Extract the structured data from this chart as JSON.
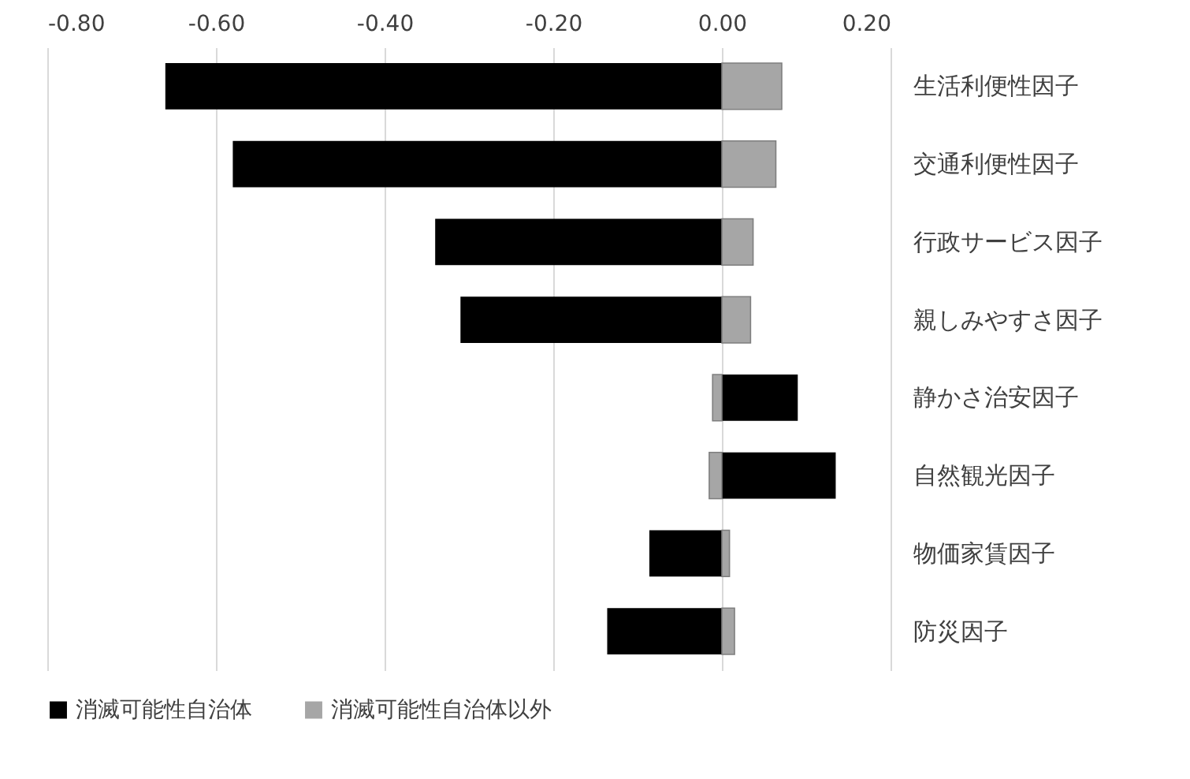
{
  "chart_data": {
    "type": "bar",
    "orientation": "horizontal",
    "categories": [
      "生活利便性因子",
      "交通利便性因子",
      "行政サービス因子",
      "親しみやすさ因子",
      "静かさ治安因子",
      "自然観光因子",
      "物価家賃因子",
      "防災因子"
    ],
    "series": [
      {
        "name": "消滅可能性自治体",
        "color": "#000000",
        "values": [
          -0.66,
          -0.58,
          -0.34,
          -0.31,
          0.09,
          0.135,
          -0.086,
          -0.136
        ]
      },
      {
        "name": "消滅可能性自治体以外",
        "color": "#a6a6a6",
        "values": [
          0.071,
          0.064,
          0.037,
          0.034,
          -0.011,
          -0.015,
          0.009,
          0.015
        ]
      }
    ],
    "xlim": [
      -0.8,
      0.2
    ],
    "xticks": [
      {
        "value": -0.8,
        "label": "-0.80"
      },
      {
        "value": -0.6,
        "label": "-0.60"
      },
      {
        "value": -0.4,
        "label": "-0.40"
      },
      {
        "value": -0.2,
        "label": "-0.20"
      },
      {
        "value": 0,
        "label": "0.00"
      },
      {
        "value": 0.2,
        "label": "0.20"
      }
    ],
    "stacked": true,
    "grid": "x",
    "legend": "bottom"
  }
}
